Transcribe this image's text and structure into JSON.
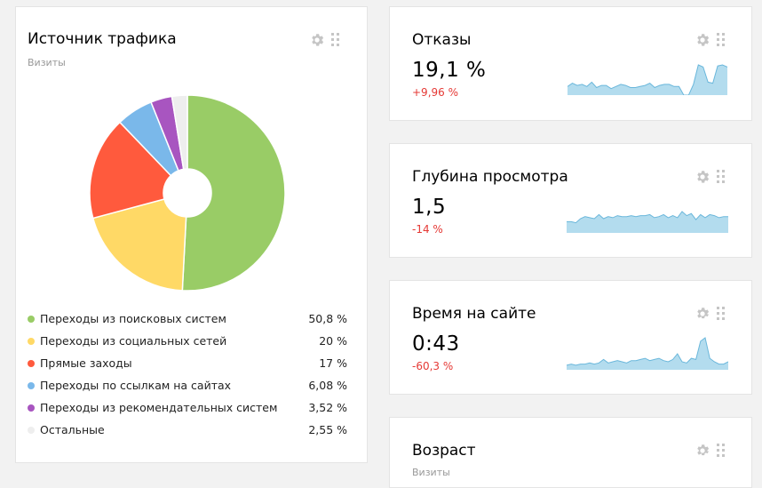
{
  "traffic": {
    "title": "Источник трафика",
    "subtitle": "Визиты",
    "chart_data": {
      "type": "pie",
      "donut": true,
      "legend_position": "bottom",
      "slices": [
        {
          "label": "Переходы из поисковых систем",
          "value": 50.8,
          "value_text": "50,8 %",
          "color": "#99cc66"
        },
        {
          "label": "Переходы из социальных сетей",
          "value": 20,
          "value_text": "20 %",
          "color": "#ffd966"
        },
        {
          "label": "Прямые заходы",
          "value": 17,
          "value_text": "17 %",
          "color": "#ff5a3d"
        },
        {
          "label": "Переходы по ссылкам на сайтах",
          "value": 6.08,
          "value_text": "6,08 %",
          "color": "#7ab8ea"
        },
        {
          "label": "Переходы из рекомендательных систем",
          "value": 3.52,
          "value_text": "3,52 %",
          "color": "#a855c0"
        },
        {
          "label": "Остальные",
          "value": 2.55,
          "value_text": "2,55 %",
          "color": "#eeeeee"
        }
      ]
    }
  },
  "bounce": {
    "title": "Отказы",
    "value": "19,1 %",
    "delta": "+9,96 %",
    "spark": [
      8,
      11,
      9,
      10,
      8,
      12,
      7,
      9,
      9,
      6,
      8,
      10,
      9,
      7,
      7,
      8,
      9,
      11,
      7,
      9,
      10,
      10,
      8,
      8,
      0,
      0,
      10,
      28,
      26,
      12,
      11,
      27,
      28,
      26
    ]
  },
  "depth": {
    "title": "Глубина просмотра",
    "value": "1,5",
    "delta": "-14 %",
    "spark": [
      11,
      11,
      10,
      14,
      16,
      15,
      14,
      18,
      14,
      16,
      15,
      17,
      16,
      16,
      17,
      16,
      17,
      17,
      18,
      15,
      16,
      18,
      15,
      17,
      15,
      21,
      17,
      19,
      13,
      18,
      15,
      18,
      17,
      15,
      16,
      16
    ]
  },
  "time": {
    "title": "Время на сайте",
    "value": "0:43",
    "delta": "-60,3 %",
    "spark": [
      4,
      5,
      4,
      5,
      5,
      6,
      5,
      6,
      9,
      6,
      7,
      8,
      7,
      6,
      8,
      8,
      9,
      10,
      8,
      9,
      10,
      8,
      7,
      9,
      14,
      7,
      6,
      10,
      9,
      25,
      28,
      10,
      7,
      5,
      5,
      7
    ]
  },
  "age": {
    "title": "Возраст",
    "subtitle": "Визиты"
  },
  "colors": {
    "spark_fill": "#b3dcee",
    "spark_line": "#6ab7db",
    "negative": "#e53935",
    "icon": "#c5c5c5"
  }
}
